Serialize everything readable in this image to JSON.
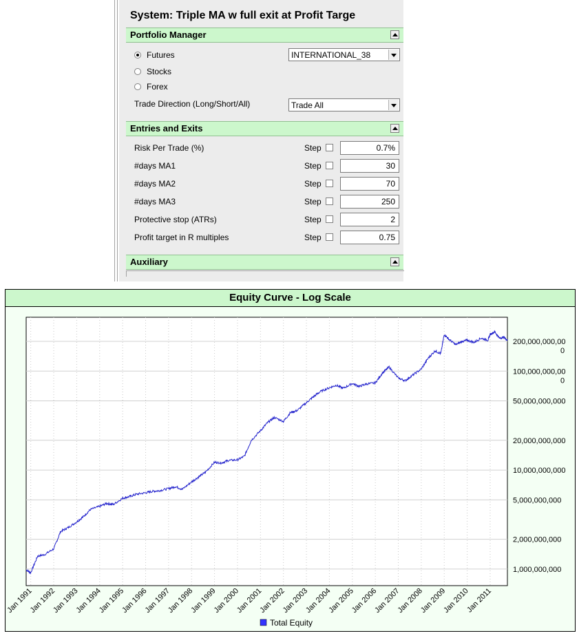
{
  "system": {
    "title": "System: Triple MA w full exit at Profit Targe"
  },
  "portfolio_manager": {
    "header": "Portfolio Manager",
    "radios": [
      {
        "label": "Futures",
        "selected": true
      },
      {
        "label": "Stocks",
        "selected": false
      },
      {
        "label": "Forex",
        "selected": false
      }
    ],
    "portfolio_select": "INTERNATIONAL_38",
    "trade_direction_label": "Trade Direction (Long/Short/All)",
    "trade_direction_select": "Trade All"
  },
  "entries_exits": {
    "header": "Entries and Exits",
    "step_label": "Step",
    "params": [
      {
        "label": "Risk Per Trade (%)",
        "value": "0.7%"
      },
      {
        "label": "#days MA1",
        "value": "30"
      },
      {
        "label": "#days MA2",
        "value": "70"
      },
      {
        "label": "#days MA3",
        "value": "250"
      },
      {
        "label": "Protective stop (ATRs)",
        "value": "2"
      },
      {
        "label": "Profit target in R multiples",
        "value": "0.75"
      }
    ]
  },
  "auxiliary": {
    "header": "Auxiliary"
  },
  "chart_data": {
    "type": "line",
    "title": "Equity Curve - Log Scale",
    "y_scale": "log",
    "ylim": [
      680000000,
      350000000000
    ],
    "y_ticks": [
      {
        "value": 1000000000,
        "label": "1,000,000,000"
      },
      {
        "value": 2000000000,
        "label": "2,000,000,000"
      },
      {
        "value": 5000000000,
        "label": "5,000,000,000"
      },
      {
        "value": 10000000000,
        "label": "10,000,000,000"
      },
      {
        "value": 20000000000,
        "label": "20,000,000,000"
      },
      {
        "value": 50000000000,
        "label": "50,000,000,000"
      },
      {
        "value": 100000000000,
        "label": "100,000,000,00\n0"
      },
      {
        "value": 200000000000,
        "label": "200,000,000,00\n0"
      }
    ],
    "x_range": [
      1990.8,
      2011.75
    ],
    "x_ticks": [
      "Jan 1991",
      "Jan 1992",
      "Jan 1993",
      "Jan 1994",
      "Jan 1995",
      "Jan 1996",
      "Jan 1997",
      "Jan 1998",
      "Jan 1999",
      "Jan 2000",
      "Jan 2001",
      "Jan 2002",
      "Jan 2003",
      "Jan 2004",
      "Jan 2005",
      "Jan 2006",
      "Jan 2007",
      "Jan 2008",
      "Jan 2009",
      "Jan 2010",
      "Jan 2011"
    ],
    "grid": true,
    "legend_position": "bottom",
    "series": [
      {
        "name": "Total Equity",
        "color": "#2222cc",
        "x": [
          1990.8,
          1991.0,
          1991.3,
          1991.6,
          1992.0,
          1992.3,
          1992.6,
          1993.0,
          1993.3,
          1993.6,
          1994.0,
          1994.3,
          1994.6,
          1995.0,
          1995.3,
          1995.6,
          1996.0,
          1996.3,
          1996.6,
          1997.0,
          1997.3,
          1997.6,
          1998.0,
          1998.3,
          1998.6,
          1999.0,
          1999.3,
          1999.6,
          2000.0,
          2000.3,
          2000.6,
          2001.0,
          2001.3,
          2001.6,
          2002.0,
          2002.3,
          2002.6,
          2003.0,
          2003.3,
          2003.6,
          2004.0,
          2004.3,
          2004.6,
          2005.0,
          2005.3,
          2005.6,
          2006.0,
          2006.3,
          2006.6,
          2007.0,
          2007.3,
          2007.6,
          2008.0,
          2008.3,
          2008.6,
          2008.85,
          2009.0,
          2009.2,
          2009.5,
          2009.8,
          2010.0,
          2010.3,
          2010.6,
          2010.9,
          2011.0,
          2011.2,
          2011.4,
          2011.6,
          2011.75
        ],
        "values": [
          980000000,
          920000000,
          1350000000,
          1400000000,
          1600000000,
          2400000000,
          2600000000,
          3000000000,
          3400000000,
          4000000000,
          4300000000,
          4600000000,
          4500000000,
          5200000000,
          5400000000,
          5700000000,
          5900000000,
          6100000000,
          6200000000,
          6500000000,
          6800000000,
          6400000000,
          7600000000,
          8500000000,
          9500000000,
          12000000000,
          11800000000,
          12500000000,
          12700000000,
          13800000000,
          20000000000,
          25000000000,
          30000000000,
          34000000000,
          31000000000,
          38000000000,
          40000000000,
          48000000000,
          55000000000,
          62000000000,
          68000000000,
          72000000000,
          67000000000,
          75000000000,
          70000000000,
          74000000000,
          76000000000,
          95000000000,
          110000000000,
          85000000000,
          80000000000,
          90000000000,
          105000000000,
          135000000000,
          160000000000,
          150000000000,
          235000000000,
          210000000000,
          185000000000,
          200000000000,
          205000000000,
          195000000000,
          215000000000,
          205000000000,
          235000000000,
          250000000000,
          215000000000,
          220000000000,
          205000000000
        ]
      }
    ]
  }
}
